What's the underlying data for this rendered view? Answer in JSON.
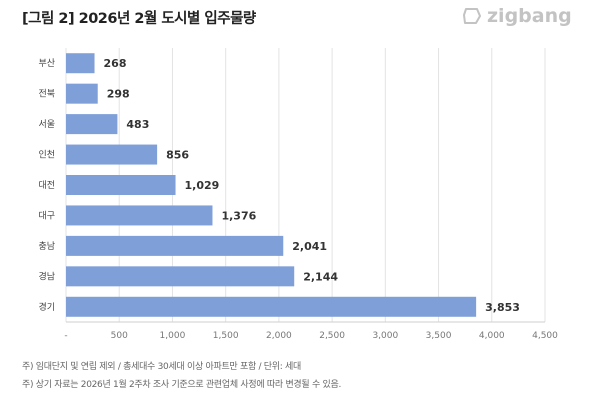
{
  "title": "[그림 2] 2026년 2월 도시별 입주물량",
  "logo": "zigbang",
  "chart_data": {
    "type": "bar",
    "orientation": "horizontal",
    "categories": [
      "부산",
      "전북",
      "서울",
      "인천",
      "대전",
      "대구",
      "충남",
      "경남",
      "경기"
    ],
    "values": [
      268,
      298,
      483,
      856,
      1029,
      1376,
      2041,
      2144,
      3853
    ],
    "value_labels": [
      "268",
      "298",
      "483",
      "856",
      "1,029",
      "1,376",
      "2,041",
      "2,144",
      "3,853"
    ],
    "xlim": [
      0,
      4500
    ],
    "x_ticks": [
      "-",
      "500",
      "1,000",
      "1,500",
      "2,000",
      "2,500",
      "3,000",
      "3,500",
      "4,000",
      "4,500"
    ],
    "grid": true,
    "bar_color": "#7f9fd8"
  },
  "notes": [
    "주) 임대단지 및 연립 제외 / 총세대수 30세대 이상 아파트만 포함 / 단위: 세대",
    "주) 상기 자료는 2026년 1월 2주차 조사 기준으로 관련업체 사정에 따라 변경될 수 있음."
  ]
}
